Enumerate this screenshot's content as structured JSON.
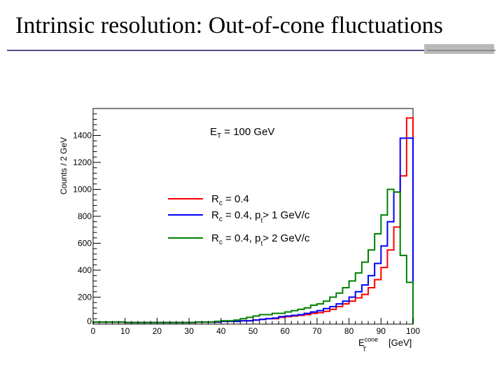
{
  "slide": {
    "title": "Intrinsic resolution: Out-of-cone fluctuations"
  },
  "chart_data": {
    "type": "histogram",
    "ylabel": "Counts  /  2 GeV",
    "xlabel": {
      "main": "E",
      "sup": "cone",
      "sub": "T",
      "unit": "[GeV]"
    },
    "annotation": {
      "main": "E",
      "sub": "T",
      "rest": " = 100 GeV"
    },
    "xlim": [
      0,
      100
    ],
    "ylim": [
      0,
      1600
    ],
    "bin_width": 2,
    "x_ticks": [
      0,
      10,
      20,
      30,
      40,
      50,
      60,
      70,
      80,
      90,
      100
    ],
    "y_ticks": [
      0,
      200,
      400,
      600,
      800,
      1000,
      1200,
      1400
    ],
    "legend": [
      {
        "series": 0,
        "main": "R",
        "sub": "c",
        "rest": "  =  0.4"
      },
      {
        "series": 1,
        "main": "R",
        "sub": "c",
        "rest": "  =  0.4, p",
        "sub2": "t",
        "rest2": ">  1  GeV/c"
      },
      {
        "series": 2,
        "main": "R",
        "sub": "c",
        "rest": "  =  0.4, p",
        "sub2": "t",
        "rest2": ">  2  GeV/c"
      }
    ],
    "series": [
      {
        "color": "#ff0000",
        "values": [
          15,
          15,
          15,
          15,
          15,
          12,
          12,
          12,
          12,
          12,
          12,
          12,
          12,
          12,
          12,
          12,
          15,
          15,
          15,
          15,
          20,
          20,
          20,
          25,
          25,
          30,
          35,
          40,
          40,
          50,
          55,
          60,
          65,
          70,
          80,
          85,
          95,
          110,
          130,
          150,
          170,
          195,
          220,
          270,
          330,
          420,
          550,
          720,
          1100,
          1530
        ]
      },
      {
        "color": "#0000ff",
        "values": [
          15,
          15,
          15,
          15,
          15,
          12,
          12,
          12,
          12,
          12,
          12,
          12,
          12,
          12,
          12,
          12,
          15,
          15,
          15,
          15,
          20,
          20,
          20,
          25,
          25,
          30,
          35,
          40,
          45,
          55,
          60,
          65,
          70,
          80,
          90,
          100,
          115,
          130,
          150,
          170,
          200,
          240,
          290,
          360,
          450,
          580,
          760,
          980,
          1380,
          1380
        ]
      },
      {
        "color": "#008000",
        "values": [
          15,
          15,
          15,
          15,
          15,
          12,
          12,
          12,
          12,
          12,
          12,
          12,
          12,
          12,
          12,
          12,
          15,
          15,
          15,
          20,
          25,
          25,
          30,
          40,
          50,
          60,
          70,
          70,
          80,
          80,
          90,
          100,
          110,
          120,
          140,
          150,
          170,
          200,
          230,
          270,
          320,
          380,
          460,
          550,
          670,
          810,
          1000,
          980,
          510,
          310
        ]
      }
    ]
  }
}
